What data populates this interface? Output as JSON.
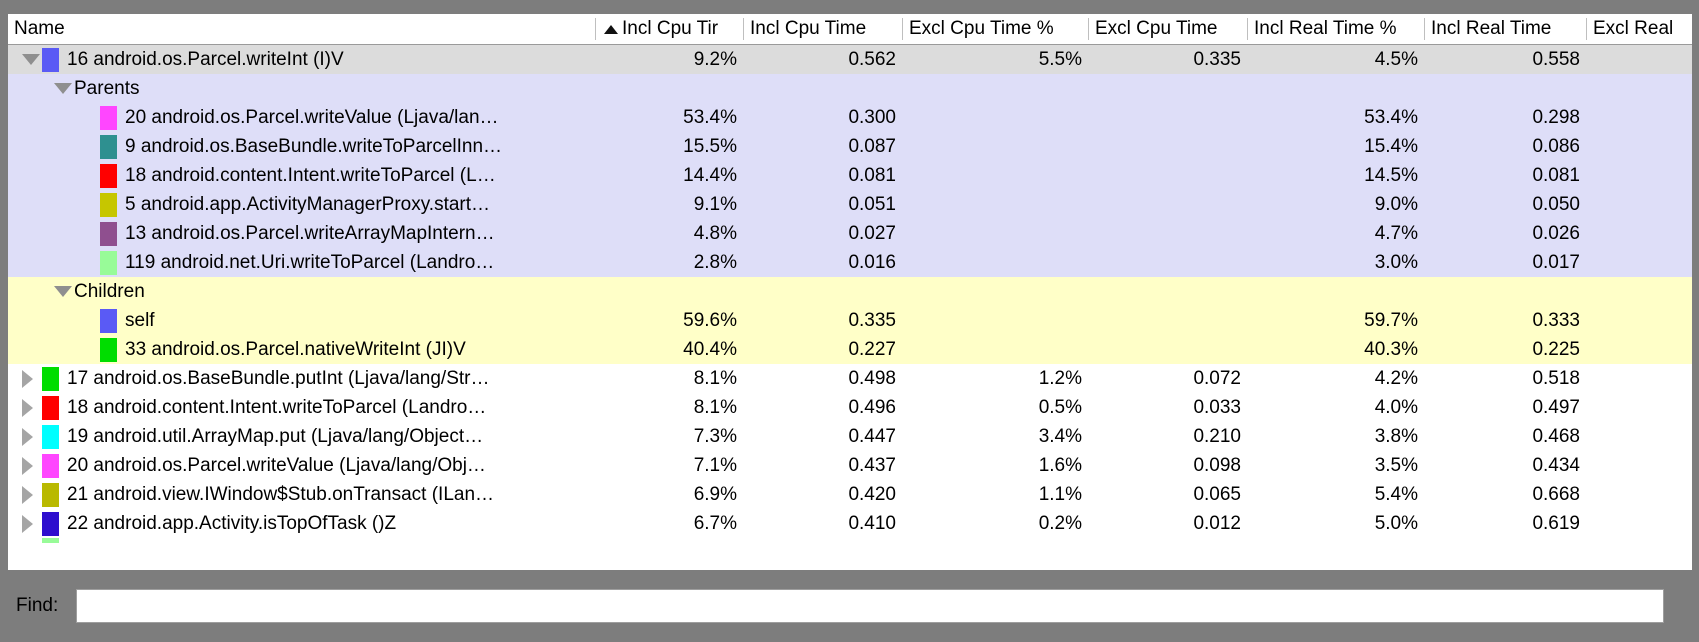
{
  "colors": {
    "window_bg": "#7d7d7d",
    "selected_row_bg": "#dcdcdc",
    "parents_section_bg": "#dedef8",
    "children_section_bg": "#ffffc8"
  },
  "header": {
    "columns": [
      {
        "label": "Name"
      },
      {
        "label": "Incl Cpu Tir",
        "sort": "asc"
      },
      {
        "label": "Incl Cpu Time"
      },
      {
        "label": "Excl Cpu Time %"
      },
      {
        "label": "Excl Cpu Time"
      },
      {
        "label": "Incl Real Time %"
      },
      {
        "label": "Incl Real Time"
      },
      {
        "label": "Excl Real"
      }
    ]
  },
  "table": {
    "rows": [
      {
        "type": "method",
        "expanded": true,
        "selected": true,
        "swatch": "#5a5af5",
        "name": "16 android.os.Parcel.writeInt (I)V",
        "incl_cpu_pct": "9.2%",
        "incl_cpu": "0.562",
        "excl_cpu_pct": "5.5%",
        "excl_cpu": "0.335",
        "incl_real_pct": "4.5%",
        "incl_real": "0.558"
      },
      {
        "type": "group",
        "section": "parents",
        "name": "Parents"
      },
      {
        "type": "sub",
        "section": "parents",
        "swatch": "#ff46ff",
        "name": "20 android.os.Parcel.writeValue (Ljava/lan…",
        "incl_cpu_pct": "53.4%",
        "incl_cpu": "0.300",
        "excl_cpu_pct": "",
        "excl_cpu": "",
        "incl_real_pct": "53.4%",
        "incl_real": "0.298"
      },
      {
        "type": "sub",
        "section": "parents",
        "swatch": "#2e9090",
        "name": "9 android.os.BaseBundle.writeToParcelInn…",
        "incl_cpu_pct": "15.5%",
        "incl_cpu": "0.087",
        "excl_cpu_pct": "",
        "excl_cpu": "",
        "incl_real_pct": "15.4%",
        "incl_real": "0.086"
      },
      {
        "type": "sub",
        "section": "parents",
        "swatch": "#ff0000",
        "name": "18 android.content.Intent.writeToParcel (L…",
        "incl_cpu_pct": "14.4%",
        "incl_cpu": "0.081",
        "excl_cpu_pct": "",
        "excl_cpu": "",
        "incl_real_pct": "14.5%",
        "incl_real": "0.081"
      },
      {
        "type": "sub",
        "section": "parents",
        "swatch": "#c6c600",
        "name": "5 android.app.ActivityManagerProxy.start…",
        "incl_cpu_pct": "9.1%",
        "incl_cpu": "0.051",
        "excl_cpu_pct": "",
        "excl_cpu": "",
        "incl_real_pct": "9.0%",
        "incl_real": "0.050"
      },
      {
        "type": "sub",
        "section": "parents",
        "swatch": "#8f4f8f",
        "name": "13 android.os.Parcel.writeArrayMapIntern…",
        "incl_cpu_pct": "4.8%",
        "incl_cpu": "0.027",
        "excl_cpu_pct": "",
        "excl_cpu": "",
        "incl_real_pct": "4.7%",
        "incl_real": "0.026"
      },
      {
        "type": "sub",
        "section": "parents",
        "swatch": "#98fb98",
        "name": "119 android.net.Uri.writeToParcel (Landro…",
        "incl_cpu_pct": "2.8%",
        "incl_cpu": "0.016",
        "excl_cpu_pct": "",
        "excl_cpu": "",
        "incl_real_pct": "3.0%",
        "incl_real": "0.017"
      },
      {
        "type": "group",
        "section": "children",
        "name": "Children"
      },
      {
        "type": "sub",
        "section": "children",
        "swatch": "#5a5af5",
        "name": "self",
        "incl_cpu_pct": "59.6%",
        "incl_cpu": "0.335",
        "excl_cpu_pct": "",
        "excl_cpu": "",
        "incl_real_pct": "59.7%",
        "incl_real": "0.333"
      },
      {
        "type": "sub",
        "section": "children",
        "swatch": "#00dd00",
        "name": "33 android.os.Parcel.nativeWriteInt (JI)V",
        "incl_cpu_pct": "40.4%",
        "incl_cpu": "0.227",
        "excl_cpu_pct": "",
        "excl_cpu": "",
        "incl_real_pct": "40.3%",
        "incl_real": "0.225"
      },
      {
        "type": "method",
        "expanded": false,
        "swatch": "#00dd00",
        "name": "17 android.os.BaseBundle.putInt (Ljava/lang/Str…",
        "incl_cpu_pct": "8.1%",
        "incl_cpu": "0.498",
        "excl_cpu_pct": "1.2%",
        "excl_cpu": "0.072",
        "incl_real_pct": "4.2%",
        "incl_real": "0.518"
      },
      {
        "type": "method",
        "expanded": false,
        "swatch": "#ff0000",
        "name": "18 android.content.Intent.writeToParcel (Landro…",
        "incl_cpu_pct": "8.1%",
        "incl_cpu": "0.496",
        "excl_cpu_pct": "0.5%",
        "excl_cpu": "0.033",
        "incl_real_pct": "4.0%",
        "incl_real": "0.497"
      },
      {
        "type": "method",
        "expanded": false,
        "swatch": "#00ffff",
        "name": "19 android.util.ArrayMap.put (Ljava/lang/Object…",
        "incl_cpu_pct": "7.3%",
        "incl_cpu": "0.447",
        "excl_cpu_pct": "3.4%",
        "excl_cpu": "0.210",
        "incl_real_pct": "3.8%",
        "incl_real": "0.468"
      },
      {
        "type": "method",
        "expanded": false,
        "swatch": "#ff46ff",
        "name": "20 android.os.Parcel.writeValue (Ljava/lang/Obj…",
        "incl_cpu_pct": "7.1%",
        "incl_cpu": "0.437",
        "excl_cpu_pct": "1.6%",
        "excl_cpu": "0.098",
        "incl_real_pct": "3.5%",
        "incl_real": "0.434"
      },
      {
        "type": "method",
        "expanded": false,
        "swatch": "#b9b900",
        "name": "21 android.view.IWindow$Stub.onTransact (ILan…",
        "incl_cpu_pct": "6.9%",
        "incl_cpu": "0.420",
        "excl_cpu_pct": "1.1%",
        "excl_cpu": "0.065",
        "incl_real_pct": "5.4%",
        "incl_real": "0.668"
      },
      {
        "type": "method",
        "expanded": false,
        "swatch": "#2e0ece",
        "name": "22 android.app.Activity.isTopOfTask ()Z",
        "incl_cpu_pct": "6.7%",
        "incl_cpu": "0.410",
        "excl_cpu_pct": "0.2%",
        "excl_cpu": "0.012",
        "incl_real_pct": "5.0%",
        "incl_real": "0.619"
      },
      {
        "type": "sliver",
        "swatch": "#98fb98"
      }
    ]
  },
  "find": {
    "label": "Find:",
    "value": ""
  }
}
